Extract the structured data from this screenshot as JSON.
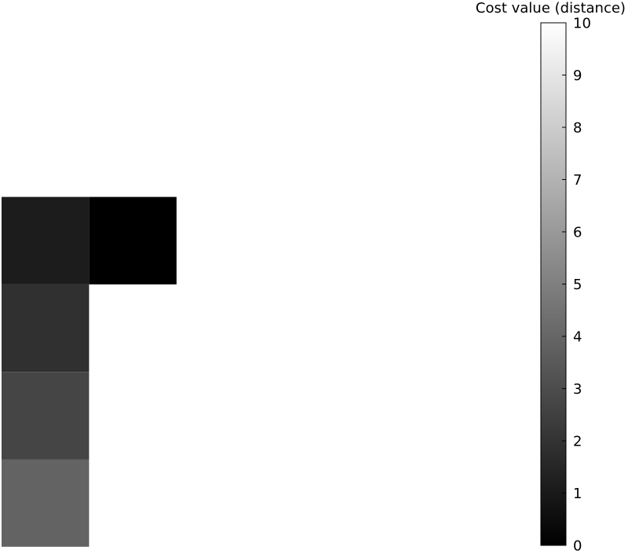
{
  "chart_data": {
    "type": "heatmap",
    "title": "",
    "xlabel": "",
    "ylabel": "",
    "colormap": "gray",
    "value_range": [
      0,
      10
    ],
    "grid_columns": 7,
    "grid_rows": 6,
    "cells": [
      {
        "row": 2,
        "col": 0,
        "value": 1.1
      },
      {
        "row": 2,
        "col": 1,
        "value": 0.0
      },
      {
        "row": 3,
        "col": 0,
        "value": 1.9
      },
      {
        "row": 4,
        "col": 0,
        "value": 2.7
      },
      {
        "row": 5,
        "col": 0,
        "value": 3.9
      }
    ],
    "colorbar": {
      "title": "Cost value (distance)",
      "ticks": [
        0,
        1,
        2,
        3,
        4,
        5,
        6,
        7,
        8,
        9,
        10
      ],
      "tick_labels": [
        "0",
        "1",
        "2",
        "3",
        "4",
        "5",
        "6",
        "7",
        "8",
        "9",
        "10"
      ]
    }
  }
}
